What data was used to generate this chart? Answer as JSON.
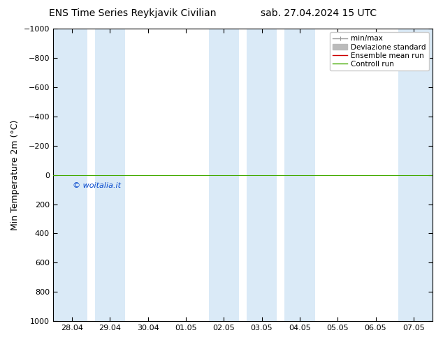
{
  "title_left": "ENS Time Series Reykjavik Civilian",
  "title_right": "sab. 27.04.2024 15 UTC",
  "ylabel": "Min Temperature 2m (°C)",
  "ylim_bottom": 1000,
  "ylim_top": -1000,
  "yticks": [
    -1000,
    -800,
    -600,
    -400,
    -200,
    0,
    200,
    400,
    600,
    800,
    1000
  ],
  "xtick_labels": [
    "28.04",
    "29.04",
    "30.04",
    "01.05",
    "02.05",
    "03.05",
    "04.05",
    "05.05",
    "06.05",
    "07.05"
  ],
  "xtick_positions": [
    0,
    1,
    2,
    3,
    4,
    5,
    6,
    7,
    8,
    9
  ],
  "xlim": [
    -0.5,
    9.5
  ],
  "blue_bands": [
    [
      -0.5,
      0.4
    ],
    [
      0.6,
      1.4
    ],
    [
      3.6,
      4.4
    ],
    [
      4.6,
      5.4
    ],
    [
      5.6,
      6.4
    ],
    [
      8.6,
      9.5
    ]
  ],
  "green_line_y": 0,
  "watermark": "© woitalia.it",
  "background_color": "#ffffff",
  "band_color": "#daeaf7",
  "legend_items": [
    {
      "label": "min/max",
      "color": "#999999",
      "lw": 1.0
    },
    {
      "label": "Deviazione standard",
      "color": "#bbbbbb",
      "lw": 5
    },
    {
      "label": "Ensemble mean run",
      "color": "#cc0000",
      "lw": 1.0
    },
    {
      "label": "Controll run",
      "color": "#44aa00",
      "lw": 1.0
    }
  ],
  "title_fontsize": 10,
  "ylabel_fontsize": 9,
  "tick_fontsize": 8,
  "legend_fontsize": 7.5
}
